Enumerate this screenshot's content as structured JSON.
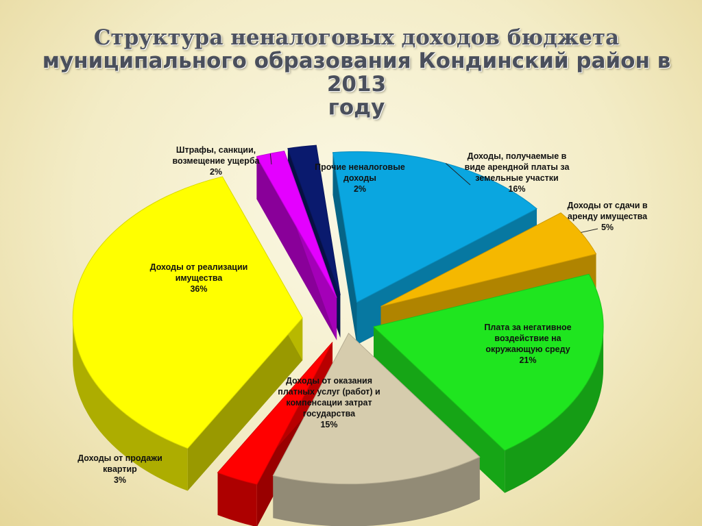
{
  "title": {
    "line1": "Структура неналоговых доходов бюджета",
    "line2": "муниципального образования Кондинский район в 2013",
    "line3": "году"
  },
  "chart_data": {
    "type": "pie",
    "title": "Структура неналоговых доходов бюджета муниципального образования Кондинский район в 2013 году",
    "slices": [
      {
        "name": "Доходы, получаемые в виде арендной платы за земельные участки",
        "value": 16,
        "label": "16%",
        "color": "#0aa6e0"
      },
      {
        "name": "Доходы от сдачи в аренду имущества",
        "value": 5,
        "label": "5%",
        "color": "#f5b800"
      },
      {
        "name": "Плата за негативное воздействие на окружающую среду",
        "value": 21,
        "label": "21%",
        "color": "#1fe51f"
      },
      {
        "name": "Доходы от оказания платных услуг (работ) и компенсации затрат государства",
        "value": 15,
        "label": "15%",
        "color": "#d6ccad"
      },
      {
        "name": "Доходы от продажи квартир",
        "value": 3,
        "label": "3%",
        "color": "#ff0000"
      },
      {
        "name": "Доходы от реализации имущества",
        "value": 36,
        "label": "36%",
        "color": "#ffff00"
      },
      {
        "name": "Штрафы, санкции, возмещение ущерба",
        "value": 2,
        "label": "2%",
        "color": "#e400ff"
      },
      {
        "name": "Прочие неналоговые доходы",
        "value": 2,
        "label": "2%",
        "color": "#0a1a6e"
      }
    ]
  },
  "labels": {
    "land_rent": {
      "l1": "Доходы, получаемые в",
      "l2": "виде арендной платы за",
      "l3": "земельные участки",
      "pct": "16%"
    },
    "property_rent": {
      "l1": "Доходы от сдачи в",
      "l2": "аренду имущества",
      "pct": "5%"
    },
    "environment": {
      "l1": "Плата за негативное",
      "l2": "воздействие на",
      "l3": "окружающую среду",
      "pct": "21%"
    },
    "services": {
      "l1": "Доходы от оказания",
      "l2": "платных услуг (работ) и",
      "l3": "компенсации затрат",
      "l4": "государства",
      "pct": "15%"
    },
    "apartments": {
      "l1": "Доходы от продажи",
      "l2": "квартир",
      "pct": "3%"
    },
    "property_sale": {
      "l1": "Доходы от реализации",
      "l2": "имущества",
      "pct": "36%"
    },
    "fines": {
      "l1": "Штрафы, санкции,",
      "l2": "возмещение ущерба",
      "pct": "2%"
    },
    "other": {
      "l1": "Прочие неналоговые",
      "l2": "доходы",
      "pct": "2%"
    }
  }
}
